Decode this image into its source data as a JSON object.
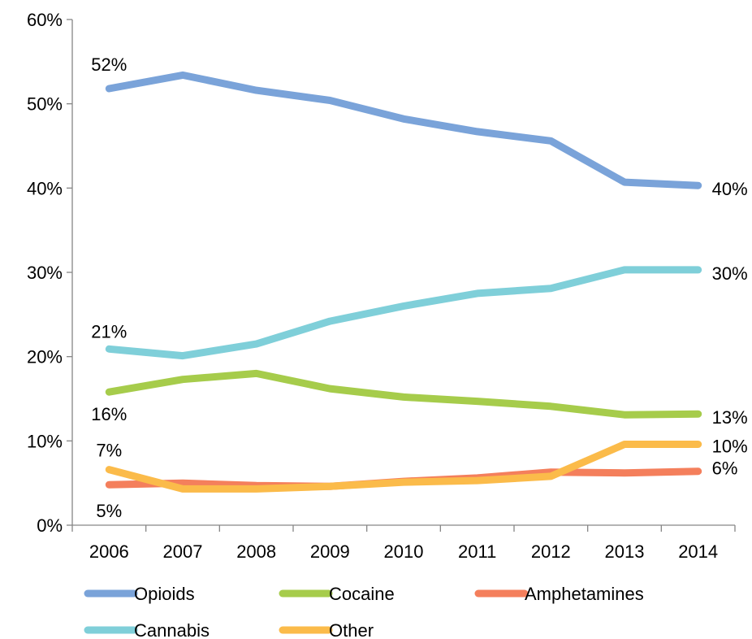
{
  "chart_data": {
    "type": "line",
    "title": "",
    "xlabel": "",
    "ylabel": "",
    "x": [
      "2006",
      "2007",
      "2008",
      "2009",
      "2010",
      "2011",
      "2012",
      "2013",
      "2014"
    ],
    "ylim": [
      0,
      60
    ],
    "y_ticks": [
      "0%",
      "10%",
      "20%",
      "30%",
      "40%",
      "50%",
      "60%"
    ],
    "grid": false,
    "legend_position": "bottom",
    "series": [
      {
        "name": "Opioids",
        "color": "#7aa3d9",
        "values": [
          51.8,
          53.4,
          51.6,
          50.4,
          48.2,
          46.7,
          45.6,
          40.7,
          40.3
        ]
      },
      {
        "name": "Cocaine",
        "color": "#a6cc4b",
        "values": [
          15.8,
          17.3,
          18.0,
          16.2,
          15.2,
          14.7,
          14.1,
          13.1,
          13.2
        ]
      },
      {
        "name": "Amphetamines",
        "color": "#f47f5c",
        "values": [
          4.8,
          5.0,
          4.7,
          4.6,
          5.2,
          5.6,
          6.3,
          6.2,
          6.4
        ]
      },
      {
        "name": "Cannabis",
        "color": "#7fcfd9",
        "values": [
          20.9,
          20.1,
          21.5,
          24.2,
          26.0,
          27.5,
          28.1,
          30.3,
          30.3
        ]
      },
      {
        "name": "Other",
        "color": "#fbbb4a",
        "values": [
          6.6,
          4.3,
          4.3,
          4.6,
          5.1,
          5.3,
          5.8,
          9.6,
          9.6
        ]
      }
    ],
    "annotations": [
      {
        "series": "Opioids",
        "x": "2006",
        "text": "52%"
      },
      {
        "series": "Cannabis",
        "x": "2006",
        "text": "21%"
      },
      {
        "series": "Cocaine",
        "x": "2006",
        "text": "16%"
      },
      {
        "series": "Other",
        "x": "2006",
        "text": "7%"
      },
      {
        "series": "Amphetamines",
        "x": "2006",
        "text": "5%"
      },
      {
        "series": "Opioids",
        "x": "2014",
        "text": "40%"
      },
      {
        "series": "Cannabis",
        "x": "2014",
        "text": "30%"
      },
      {
        "series": "Cocaine",
        "x": "2014",
        "text": "13%"
      },
      {
        "series": "Other",
        "x": "2014",
        "text": "10%"
      },
      {
        "series": "Amphetamines",
        "x": "2014",
        "text": "6%"
      }
    ]
  }
}
